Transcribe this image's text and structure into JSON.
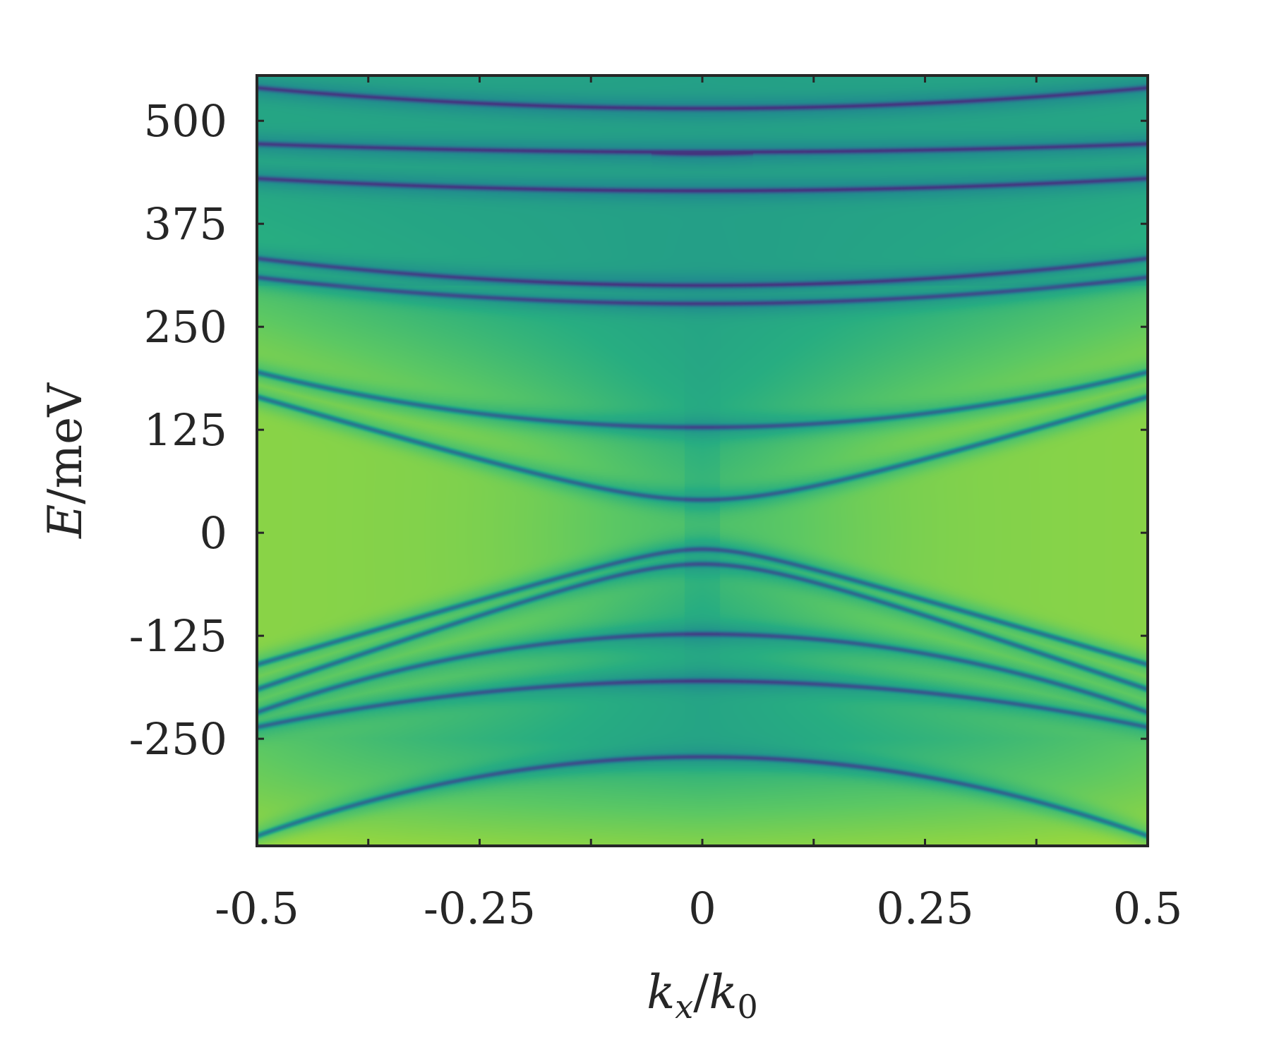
{
  "chart_data": {
    "type": "heatmap",
    "title": "",
    "xlabel": {
      "math": "k_x / k_0",
      "parts": [
        "k",
        "x",
        "/",
        "k",
        "0"
      ]
    },
    "ylabel": {
      "math": "E / meV",
      "parts": [
        "E",
        "/",
        "meV"
      ]
    },
    "xlim": [
      -0.5,
      0.5
    ],
    "ylim": [
      -380,
      555
    ],
    "x_ticks": [
      -0.5,
      -0.25,
      0,
      0.25,
      0.5
    ],
    "x_tick_labels": [
      "-0.5",
      "-0.25",
      "0",
      "0.25",
      "0.5"
    ],
    "y_ticks": [
      -250,
      -125,
      0,
      125,
      250,
      375,
      500
    ],
    "y_tick_labels": [
      "-250",
      "-125",
      "0",
      "125",
      "250",
      "375",
      "500"
    ],
    "colormap": "viridis",
    "colorbar": "none",
    "grid": false,
    "background_colors": {
      "bright": "#fde725",
      "mid": "#35b779",
      "dark": "#21908d",
      "line": "#3b528b"
    },
    "bands": [
      {
        "E0": 40,
        "Eedge": 165,
        "shape": "hyperbolic"
      },
      {
        "E0": -20,
        "Eedge": -160,
        "shape": "hyperbolic"
      },
      {
        "E0": -38,
        "Eedge": -190,
        "shape": "hyperbolic"
      },
      {
        "E0": 128,
        "Eedge": 195,
        "shape": "parabolic"
      },
      {
        "E0": 278,
        "Eedge": 310,
        "shape": "parabolic"
      },
      {
        "E0": 300,
        "Eedge": 333,
        "shape": "parabolic"
      },
      {
        "E0": 415,
        "Eedge": 430,
        "shape": "parabolic"
      },
      {
        "E0": 462,
        "Eedge": 472,
        "shape": "parabolic"
      },
      {
        "E0": 515,
        "Eedge": 540,
        "shape": "parabolic"
      },
      {
        "E0": -123,
        "Eedge": -218,
        "shape": "parabolic"
      },
      {
        "E0": -180,
        "Eedge": -236,
        "shape": "parabolic"
      },
      {
        "E0": -272,
        "Eedge": -368,
        "shape": "parabolic"
      },
      {
        "E0": 460,
        "Eedge": 555,
        "shape": "parabolic",
        "x_range": [
          -0.057,
          0.057
        ]
      }
    ]
  }
}
